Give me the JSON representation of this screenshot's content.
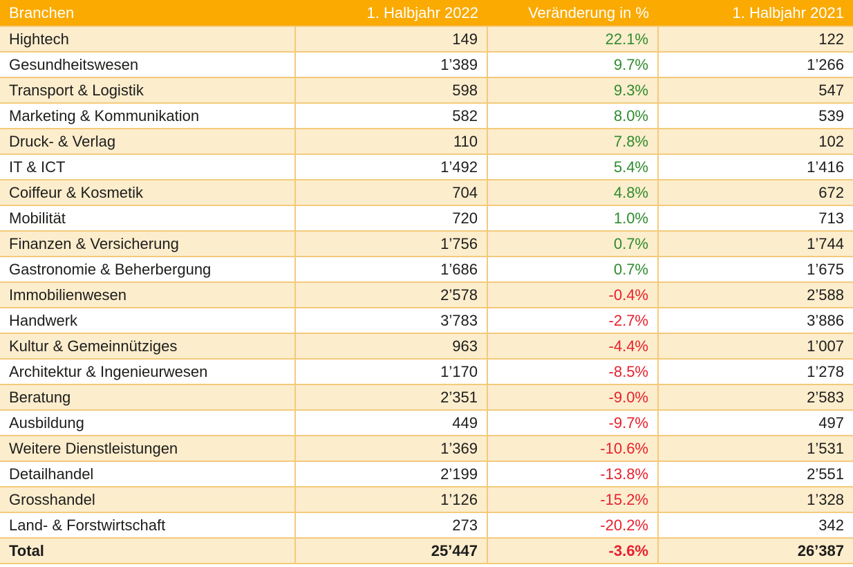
{
  "chart_data": {
    "type": "table",
    "columns": [
      {
        "key": "branche",
        "label": "Branchen",
        "align": "left"
      },
      {
        "key": "hj2022",
        "label": "1. Halbjahr 2022",
        "align": "right"
      },
      {
        "key": "change",
        "label": "Veränderung in %",
        "align": "right"
      },
      {
        "key": "hj2021",
        "label": "1. Halbjahr 2021",
        "align": "right"
      }
    ],
    "rows": [
      {
        "branche": "Hightech",
        "hj2022": "149",
        "change": "22.1%",
        "hj2021": "122"
      },
      {
        "branche": "Gesundheitswesen",
        "hj2022": "1’389",
        "change": "9.7%",
        "hj2021": "1’266"
      },
      {
        "branche": "Transport & Logistik",
        "hj2022": "598",
        "change": "9.3%",
        "hj2021": "547"
      },
      {
        "branche": "Marketing & Kommunikation",
        "hj2022": "582",
        "change": "8.0%",
        "hj2021": "539"
      },
      {
        "branche": "Druck- & Verlag",
        "hj2022": "110",
        "change": "7.8%",
        "hj2021": "102"
      },
      {
        "branche": "IT & ICT",
        "hj2022": "1’492",
        "change": "5.4%",
        "hj2021": "1’416"
      },
      {
        "branche": "Coiffeur & Kosmetik",
        "hj2022": "704",
        "change": "4.8%",
        "hj2021": "672"
      },
      {
        "branche": "Mobilität",
        "hj2022": "720",
        "change": "1.0%",
        "hj2021": "713"
      },
      {
        "branche": "Finanzen & Versicherung",
        "hj2022": "1’756",
        "change": "0.7%",
        "hj2021": "1’744"
      },
      {
        "branche": "Gastronomie & Beherbergung",
        "hj2022": "1’686",
        "change": "0.7%",
        "hj2021": "1’675"
      },
      {
        "branche": "Immobilienwesen",
        "hj2022": "2’578",
        "change": "-0.4%",
        "hj2021": "2’588"
      },
      {
        "branche": "Handwerk",
        "hj2022": "3’783",
        "change": "-2.7%",
        "hj2021": "3’886"
      },
      {
        "branche": "Kultur & Gemeinnütziges",
        "hj2022": "963",
        "change": "-4.4%",
        "hj2021": "1’007"
      },
      {
        "branche": "Architektur & Ingenieurwesen",
        "hj2022": "1’170",
        "change": "-8.5%",
        "hj2021": "1’278"
      },
      {
        "branche": "Beratung",
        "hj2022": "2’351",
        "change": "-9.0%",
        "hj2021": "2’583"
      },
      {
        "branche": "Ausbildung",
        "hj2022": "449",
        "change": "-9.7%",
        "hj2021": "497"
      },
      {
        "branche": "Weitere Dienstleistungen",
        "hj2022": "1’369",
        "change": "-10.6%",
        "hj2021": "1’531"
      },
      {
        "branche": "Detailhandel",
        "hj2022": "2’199",
        "change": "-13.8%",
        "hj2021": "2’551"
      },
      {
        "branche": "Grosshandel",
        "hj2022": "1’126",
        "change": "-15.2%",
        "hj2021": "1’328"
      },
      {
        "branche": "Land- & Forstwirtschaft",
        "hj2022": "273",
        "change": "-20.2%",
        "hj2021": "342"
      }
    ],
    "total": {
      "branche": "Total",
      "hj2022": "25’447",
      "change": "-3.6%",
      "hj2021": "26’387"
    },
    "layout": {
      "zebra_striping": true,
      "first_row_shade": "cream",
      "grid_on": true
    }
  },
  "colors": {
    "header_bg": "#FAAA00",
    "header_text": "#FFFFFF",
    "row_cream": "#FCEDCD",
    "row_white": "#FFFFFF",
    "border": "#F3CA7B",
    "positive": "#2E8B2D",
    "negative": "#E8202C",
    "text": "#1D1D1B"
  }
}
